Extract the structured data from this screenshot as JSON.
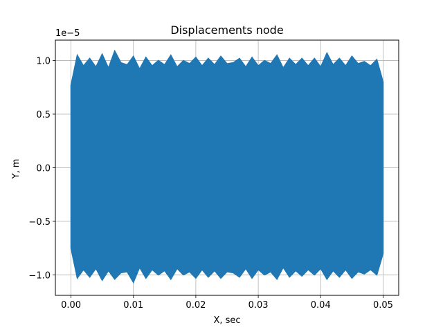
{
  "chart_data": {
    "type": "line",
    "title": "Displacements node",
    "xlabel": "X, sec",
    "ylabel": "Y, m",
    "offset_label": "1e−5",
    "xlim": [
      -0.0025,
      0.0525
    ],
    "ylim": [
      -1.19e-05,
      1.19e-05
    ],
    "xticks": [
      0.0,
      0.01,
      0.02,
      0.03,
      0.04,
      0.05
    ],
    "xtick_labels": [
      "0.00",
      "0.01",
      "0.02",
      "0.03",
      "0.04",
      "0.05"
    ],
    "yticks": [
      -1e-05,
      -5e-06,
      0.0,
      5e-06,
      1e-05
    ],
    "ytick_labels": [
      "−1.0",
      "−0.5",
      "0.0",
      "0.5",
      "1.0"
    ],
    "grid": true,
    "series": [
      {
        "color": "#1f77b4",
        "envelope": {
          "x": [
            0.0,
            0.001,
            0.002,
            0.003,
            0.004,
            0.005,
            0.006,
            0.007,
            0.008,
            0.009,
            0.01,
            0.011,
            0.012,
            0.013,
            0.014,
            0.015,
            0.016,
            0.017,
            0.018,
            0.019,
            0.02,
            0.021,
            0.022,
            0.023,
            0.024,
            0.025,
            0.026,
            0.027,
            0.028,
            0.029,
            0.03,
            0.031,
            0.032,
            0.033,
            0.034,
            0.035,
            0.036,
            0.037,
            0.038,
            0.039,
            0.04,
            0.041,
            0.042,
            0.043,
            0.044,
            0.045,
            0.046,
            0.047,
            0.048,
            0.049,
            0.05
          ],
          "max": [
            7.7e-06,
            1.05e-05,
            9.5e-06,
            1.02e-05,
            9.4e-06,
            1.06e-05,
            9.3e-06,
            1.09e-05,
            9.8e-06,
            9.6e-06,
            1.04e-05,
            9.2e-06,
            1.03e-05,
            9.5e-06,
            1e-05,
            9.6e-06,
            1.05e-05,
            9.4e-06,
            1e-05,
            9.7e-06,
            1.03e-05,
            9.5e-06,
            1.02e-05,
            9.6e-06,
            1.04e-05,
            9.7e-06,
            9.8e-06,
            1.02e-05,
            9.4e-06,
            1.03e-05,
            9.5e-06,
            1e-05,
            9.7e-06,
            1.05e-05,
            9.3e-06,
            1.02e-05,
            9.6e-06,
            1.02e-05,
            9.5e-06,
            1.02e-05,
            9.4e-06,
            1.07e-05,
            9.6e-06,
            1.02e-05,
            9.5e-06,
            1.04e-05,
            9.7e-06,
            9.9e-06,
            9.5e-06,
            1.01e-05,
            8e-06
          ],
          "min": [
            -7.5e-06,
            -1.03e-05,
            -9.5e-06,
            -1.02e-05,
            -9.4e-06,
            -1.05e-05,
            -9.6e-06,
            -1.04e-05,
            -9.8e-06,
            -9.7e-06,
            -1.07e-05,
            -9.3e-06,
            -1.03e-05,
            -9.5e-06,
            -1e-05,
            -9.6e-06,
            -1.04e-05,
            -9.4e-06,
            -1e-05,
            -9.7e-06,
            -1.03e-05,
            -9.5e-06,
            -1.02e-05,
            -9.6e-06,
            -1.03e-05,
            -9.7e-06,
            -9.8e-06,
            -1.02e-05,
            -9.4e-06,
            -1.03e-05,
            -9.5e-06,
            -1e-05,
            -9.7e-06,
            -1.04e-05,
            -9.3e-06,
            -1.02e-05,
            -9.6e-06,
            -1.01e-05,
            -9.5e-06,
            -1e-05,
            -9.4e-06,
            -1.04e-05,
            -9.6e-06,
            -1.02e-05,
            -9.5e-06,
            -1.03e-05,
            -9.7e-06,
            -9.9e-06,
            -9.5e-06,
            -1e-05,
            -8e-06
          ]
        }
      }
    ]
  }
}
